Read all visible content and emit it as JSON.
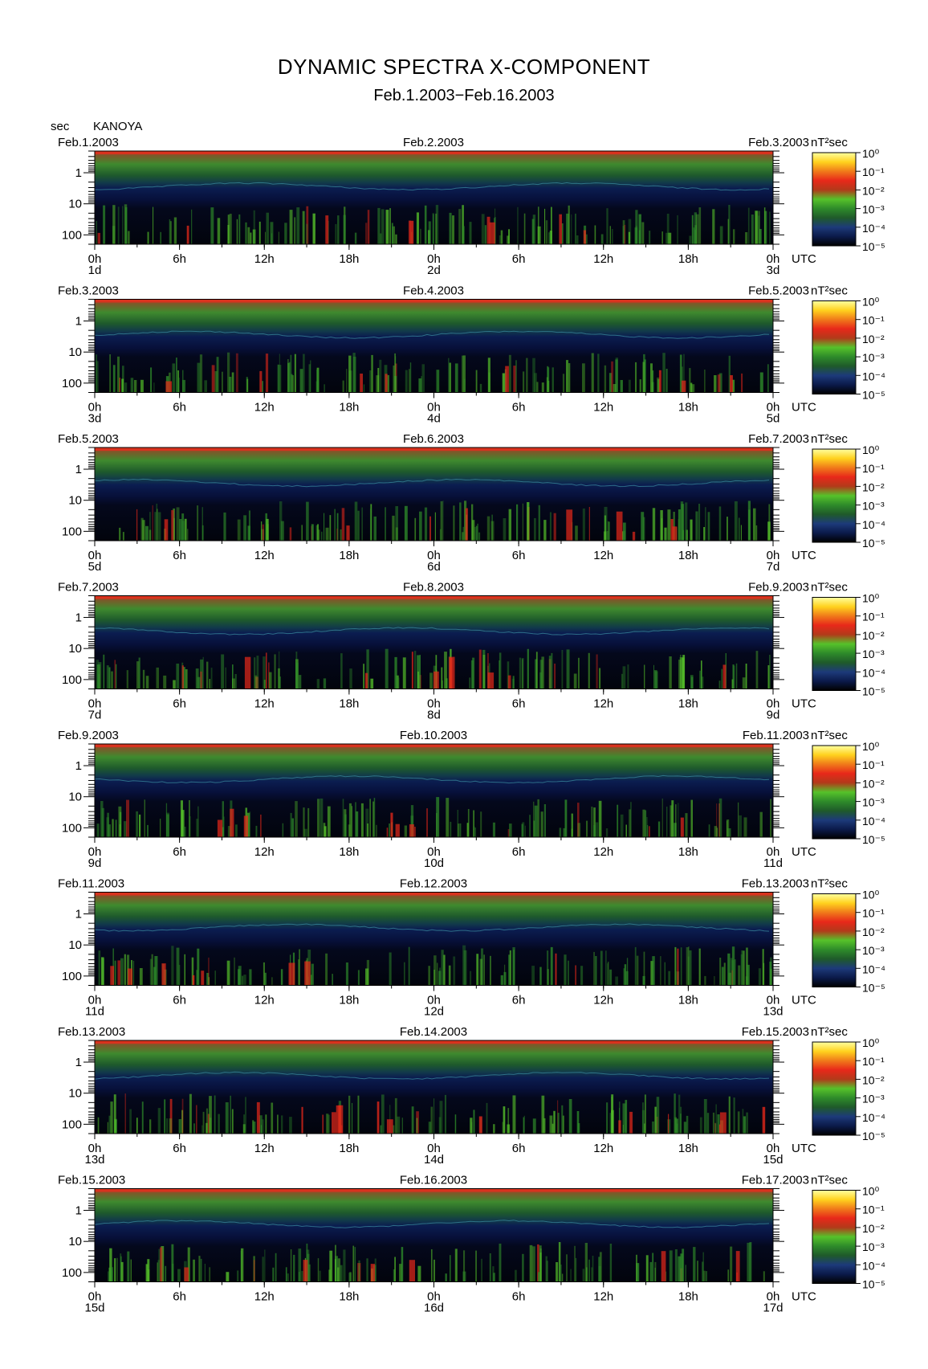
{
  "title": "DYNAMIC SPECTRA X-COMPONENT",
  "subtitle": "Feb.1.2003−Feb.16.2003",
  "ylabel": "sec",
  "station": "KANOYA",
  "colorbar_label": "nT²sec",
  "time_unit_label": "UTC",
  "colormap": [
    "#000000",
    "#0b1a4a",
    "#1d3a7a",
    "#1f5a2a",
    "#2e8b2a",
    "#56c22a",
    "#b23a1a",
    "#e8281a",
    "#f07a1a",
    "#ffd21e",
    "#ffffa0"
  ],
  "chart_data": [
    {
      "type": "heatmap",
      "date_left": "Feb.1.2003",
      "date_mid": "Feb.2.2003",
      "date_right": "Feb.3.2003",
      "day_ticks": [
        "1d",
        "2d",
        "3d"
      ],
      "hour_ticks": [
        "0h",
        "6h",
        "12h",
        "18h",
        "0h",
        "6h",
        "12h",
        "18h",
        "0h"
      ],
      "y_ticks": [
        "1",
        "10",
        "100"
      ],
      "colorbar_ticks": [
        "10⁰",
        "10⁻¹",
        "10⁻²",
        "10⁻³",
        "10⁻⁴",
        "10⁻⁵"
      ],
      "ylim": [
        0.2,
        200
      ],
      "y_scale": "log",
      "xlim_hours": [
        0,
        48
      ],
      "clim": [
        1e-05,
        1
      ]
    },
    {
      "type": "heatmap",
      "date_left": "Feb.3.2003",
      "date_mid": "Feb.4.2003",
      "date_right": "Feb.5.2003",
      "day_ticks": [
        "3d",
        "4d",
        "5d"
      ],
      "hour_ticks": [
        "0h",
        "6h",
        "12h",
        "18h",
        "0h",
        "6h",
        "12h",
        "18h",
        "0h"
      ],
      "y_ticks": [
        "1",
        "10",
        "100"
      ],
      "colorbar_ticks": [
        "10⁰",
        "10⁻¹",
        "10⁻²",
        "10⁻³",
        "10⁻⁴",
        "10⁻⁵"
      ],
      "ylim": [
        0.2,
        200
      ],
      "y_scale": "log",
      "xlim_hours": [
        0,
        48
      ],
      "clim": [
        1e-05,
        1
      ]
    },
    {
      "type": "heatmap",
      "date_left": "Feb.5.2003",
      "date_mid": "Feb.6.2003",
      "date_right": "Feb.7.2003",
      "day_ticks": [
        "5d",
        "6d",
        "7d"
      ],
      "hour_ticks": [
        "0h",
        "6h",
        "12h",
        "18h",
        "0h",
        "6h",
        "12h",
        "18h",
        "0h"
      ],
      "y_ticks": [
        "1",
        "10",
        "100"
      ],
      "colorbar_ticks": [
        "10⁰",
        "10⁻¹",
        "10⁻²",
        "10⁻³",
        "10⁻⁴",
        "10⁻⁵"
      ],
      "ylim": [
        0.2,
        200
      ],
      "y_scale": "log",
      "xlim_hours": [
        0,
        48
      ],
      "clim": [
        1e-05,
        1
      ]
    },
    {
      "type": "heatmap",
      "date_left": "Feb.7.2003",
      "date_mid": "Feb.8.2003",
      "date_right": "Feb.9.2003",
      "day_ticks": [
        "7d",
        "8d",
        "9d"
      ],
      "hour_ticks": [
        "0h",
        "6h",
        "12h",
        "18h",
        "0h",
        "6h",
        "12h",
        "18h",
        "0h"
      ],
      "y_ticks": [
        "1",
        "10",
        "100"
      ],
      "colorbar_ticks": [
        "10⁰",
        "10⁻¹",
        "10⁻²",
        "10⁻³",
        "10⁻⁴",
        "10⁻⁵"
      ],
      "ylim": [
        0.2,
        200
      ],
      "y_scale": "log",
      "xlim_hours": [
        0,
        48
      ],
      "clim": [
        1e-05,
        1
      ]
    },
    {
      "type": "heatmap",
      "date_left": "Feb.9.2003",
      "date_mid": "Feb.10.2003",
      "date_right": "Feb.11.2003",
      "day_ticks": [
        "9d",
        "10d",
        "11d"
      ],
      "hour_ticks": [
        "0h",
        "6h",
        "12h",
        "18h",
        "0h",
        "6h",
        "12h",
        "18h",
        "0h"
      ],
      "y_ticks": [
        "1",
        "10",
        "100"
      ],
      "colorbar_ticks": [
        "10⁰",
        "10⁻¹",
        "10⁻²",
        "10⁻³",
        "10⁻⁴",
        "10⁻⁵"
      ],
      "ylim": [
        0.2,
        200
      ],
      "y_scale": "log",
      "xlim_hours": [
        0,
        48
      ],
      "clim": [
        1e-05,
        1
      ]
    },
    {
      "type": "heatmap",
      "date_left": "Feb.11.2003",
      "date_mid": "Feb.12.2003",
      "date_right": "Feb.13.2003",
      "day_ticks": [
        "11d",
        "12d",
        "13d"
      ],
      "hour_ticks": [
        "0h",
        "6h",
        "12h",
        "18h",
        "0h",
        "6h",
        "12h",
        "18h",
        "0h"
      ],
      "y_ticks": [
        "1",
        "10",
        "100"
      ],
      "colorbar_ticks": [
        "10⁰",
        "10⁻¹",
        "10⁻²",
        "10⁻³",
        "10⁻⁴",
        "10⁻⁵"
      ],
      "ylim": [
        0.2,
        200
      ],
      "y_scale": "log",
      "xlim_hours": [
        0,
        48
      ],
      "clim": [
        1e-05,
        1
      ]
    },
    {
      "type": "heatmap",
      "date_left": "Feb.13.2003",
      "date_mid": "Feb.14.2003",
      "date_right": "Feb.15.2003",
      "day_ticks": [
        "13d",
        "14d",
        "15d"
      ],
      "hour_ticks": [
        "0h",
        "6h",
        "12h",
        "18h",
        "0h",
        "6h",
        "12h",
        "18h",
        "0h"
      ],
      "y_ticks": [
        "1",
        "10",
        "100"
      ],
      "colorbar_ticks": [
        "10⁰",
        "10⁻¹",
        "10⁻²",
        "10⁻³",
        "10⁻⁴",
        "10⁻⁵"
      ],
      "ylim": [
        0.2,
        200
      ],
      "y_scale": "log",
      "xlim_hours": [
        0,
        48
      ],
      "clim": [
        1e-05,
        1
      ]
    },
    {
      "type": "heatmap",
      "date_left": "Feb.15.2003",
      "date_mid": "Feb.16.2003",
      "date_right": "Feb.17.2003",
      "day_ticks": [
        "15d",
        "16d",
        "17d"
      ],
      "hour_ticks": [
        "0h",
        "6h",
        "12h",
        "18h",
        "0h",
        "6h",
        "12h",
        "18h",
        "0h"
      ],
      "y_ticks": [
        "1",
        "10",
        "100"
      ],
      "colorbar_ticks": [
        "10⁰",
        "10⁻¹",
        "10⁻²",
        "10⁻³",
        "10⁻⁴",
        "10⁻⁵"
      ],
      "ylim": [
        0.2,
        200
      ],
      "y_scale": "log",
      "xlim_hours": [
        0,
        48
      ],
      "clim": [
        1e-05,
        1
      ]
    }
  ]
}
